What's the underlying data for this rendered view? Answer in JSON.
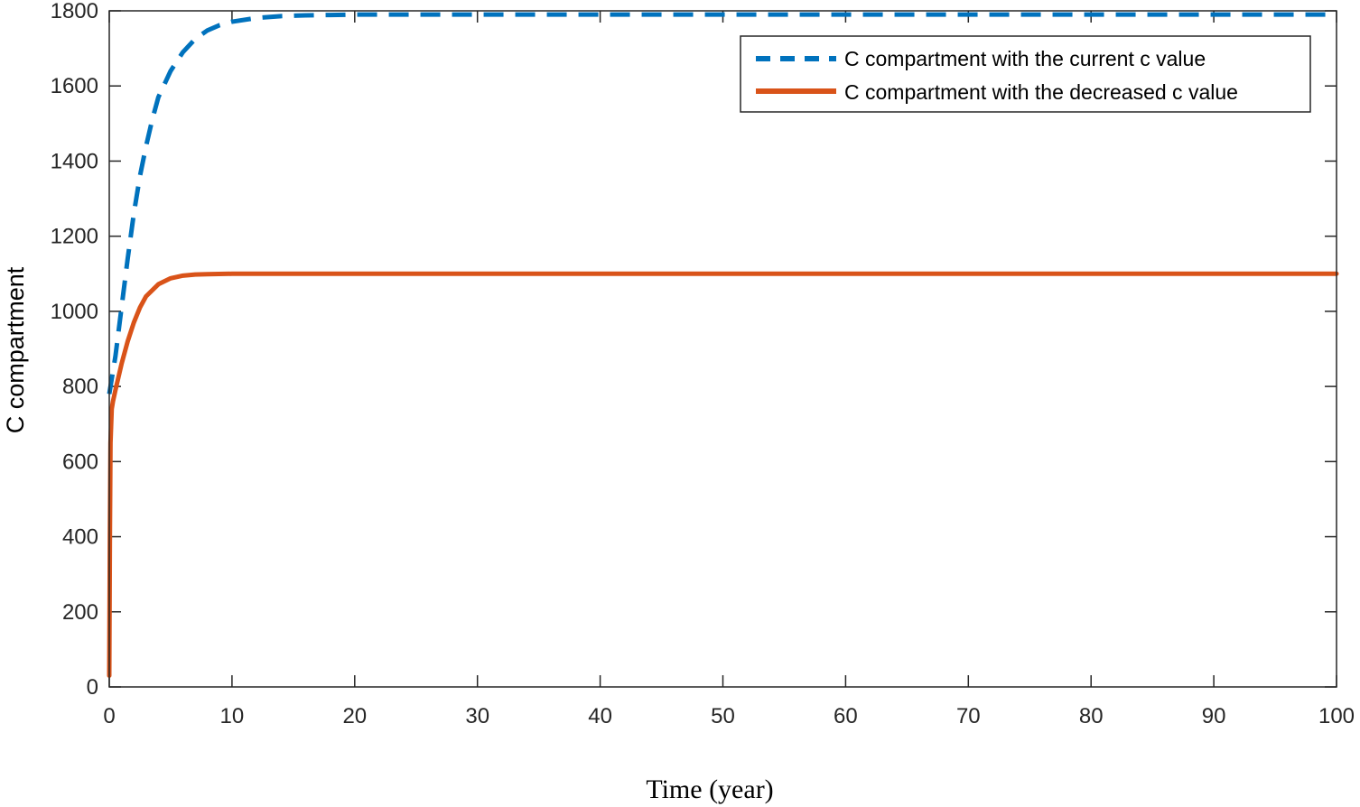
{
  "chart_data": {
    "type": "line",
    "title": "",
    "xlabel": "Time (year)",
    "ylabel": "C compartment",
    "xlim": [
      0,
      100
    ],
    "ylim": [
      0,
      1800
    ],
    "xticks": [
      0,
      10,
      20,
      30,
      40,
      50,
      60,
      70,
      80,
      90,
      100
    ],
    "yticks": [
      0,
      200,
      400,
      600,
      800,
      1000,
      1200,
      1400,
      1600,
      1800
    ],
    "grid": false,
    "legend_position": "top-right",
    "series": [
      {
        "name": "C compartment with the current c value",
        "color": "#0072BD",
        "style": "dashed",
        "x": [
          0,
          0.5,
          1,
          1.5,
          2,
          2.5,
          3,
          3.5,
          4,
          5,
          6,
          7,
          8,
          9,
          10,
          12,
          14,
          16,
          18,
          20,
          25,
          30,
          40,
          50,
          60,
          70,
          80,
          90,
          100
        ],
        "values": [
          780,
          880,
          1010,
          1140,
          1260,
          1360,
          1440,
          1510,
          1570,
          1640,
          1690,
          1725,
          1748,
          1762,
          1771,
          1781,
          1786,
          1788,
          1789,
          1790,
          1790,
          1790,
          1790,
          1790,
          1790,
          1790,
          1790,
          1790,
          1790
        ]
      },
      {
        "name": "C compartment with the decreased c value",
        "color": "#D95319",
        "style": "solid",
        "x": [
          0,
          0.05,
          0.1,
          0.2,
          0.3,
          0.5,
          1,
          1.5,
          2,
          2.5,
          3,
          4,
          5,
          6,
          7,
          8,
          10,
          12,
          15,
          20,
          30,
          40,
          50,
          60,
          70,
          80,
          90,
          100
        ],
        "values": [
          30,
          400,
          650,
          740,
          760,
          790,
          860,
          920,
          970,
          1010,
          1040,
          1072,
          1088,
          1095,
          1098,
          1099,
          1100,
          1100,
          1100,
          1100,
          1100,
          1100,
          1100,
          1100,
          1100,
          1100,
          1100,
          1100
        ]
      }
    ]
  }
}
